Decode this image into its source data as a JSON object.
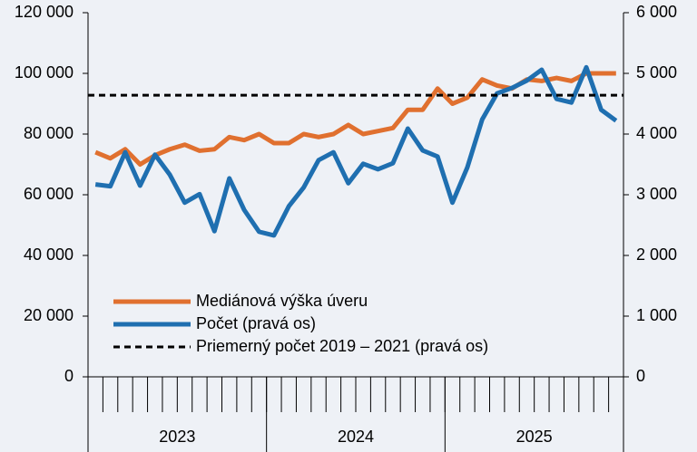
{
  "chart_data": {
    "type": "line",
    "categories": [
      null,
      null,
      null,
      null,
      null,
      null,
      null,
      null,
      null,
      null,
      null,
      null,
      null,
      null,
      null,
      null,
      null,
      null,
      null,
      null,
      null,
      null,
      null,
      null,
      null,
      null,
      null,
      null,
      null,
      null,
      null,
      null,
      null,
      null,
      null,
      null
    ],
    "groups": [
      "2023",
      "2024",
      "2025"
    ],
    "series": [
      {
        "name": "Mediánová výška úveru",
        "color": "#e0702f",
        "axis": "y",
        "values": [
          74000,
          72000,
          75000,
          70000,
          73000,
          75000,
          76500,
          74500,
          75000,
          79000,
          78000,
          80000,
          77000,
          77000,
          80000,
          79000,
          80000,
          83000,
          80000,
          81000,
          82000,
          88000,
          88000,
          95000,
          90000,
          92000,
          98000,
          96000,
          95000,
          98000,
          97500,
          98500,
          97500,
          100000,
          100000,
          100000
        ]
      },
      {
        "name": "Počet (pravá os)",
        "color": "#1f6fb0",
        "axis": "y2",
        "values": [
          3170,
          3140,
          3700,
          3150,
          3660,
          3330,
          2870,
          3010,
          2400,
          3270,
          2750,
          2390,
          2330,
          2810,
          3120,
          3570,
          3700,
          3190,
          3510,
          3420,
          3520,
          4090,
          3730,
          3630,
          2870,
          3450,
          4240,
          4670,
          4760,
          4880,
          5060,
          4580,
          4520,
          5100,
          4400,
          4220
        ]
      },
      {
        "name": "Priemerný počet 2019 – 2021 (pravá os)",
        "color": "#000000",
        "axis": "y2",
        "dashed": true,
        "value": 4640
      }
    ],
    "ylim": [
      0,
      120000
    ],
    "yticks": [
      0,
      {
        "value": 20000,
        "label": "20 000"
      },
      {
        "value": 40000,
        "label": "40 000"
      },
      {
        "value": 60000,
        "label": "60 000"
      },
      {
        "value": 80000,
        "label": "80 000"
      },
      {
        "value": 100000,
        "label": "100 000"
      },
      {
        "value": 120000,
        "label": "120 000"
      }
    ],
    "y2lim": [
      0,
      6000
    ],
    "y2ticks": [
      0,
      {
        "value": 1000,
        "label": "1 000"
      },
      {
        "value": 2000,
        "label": "2 000"
      },
      {
        "value": 3000,
        "label": "3 000"
      },
      {
        "value": 4000,
        "label": "4 000"
      },
      {
        "value": 5000,
        "label": "5 000"
      },
      {
        "value": 6000,
        "label": "6 000"
      }
    ],
    "grid": false,
    "legend": "bottom-left"
  }
}
